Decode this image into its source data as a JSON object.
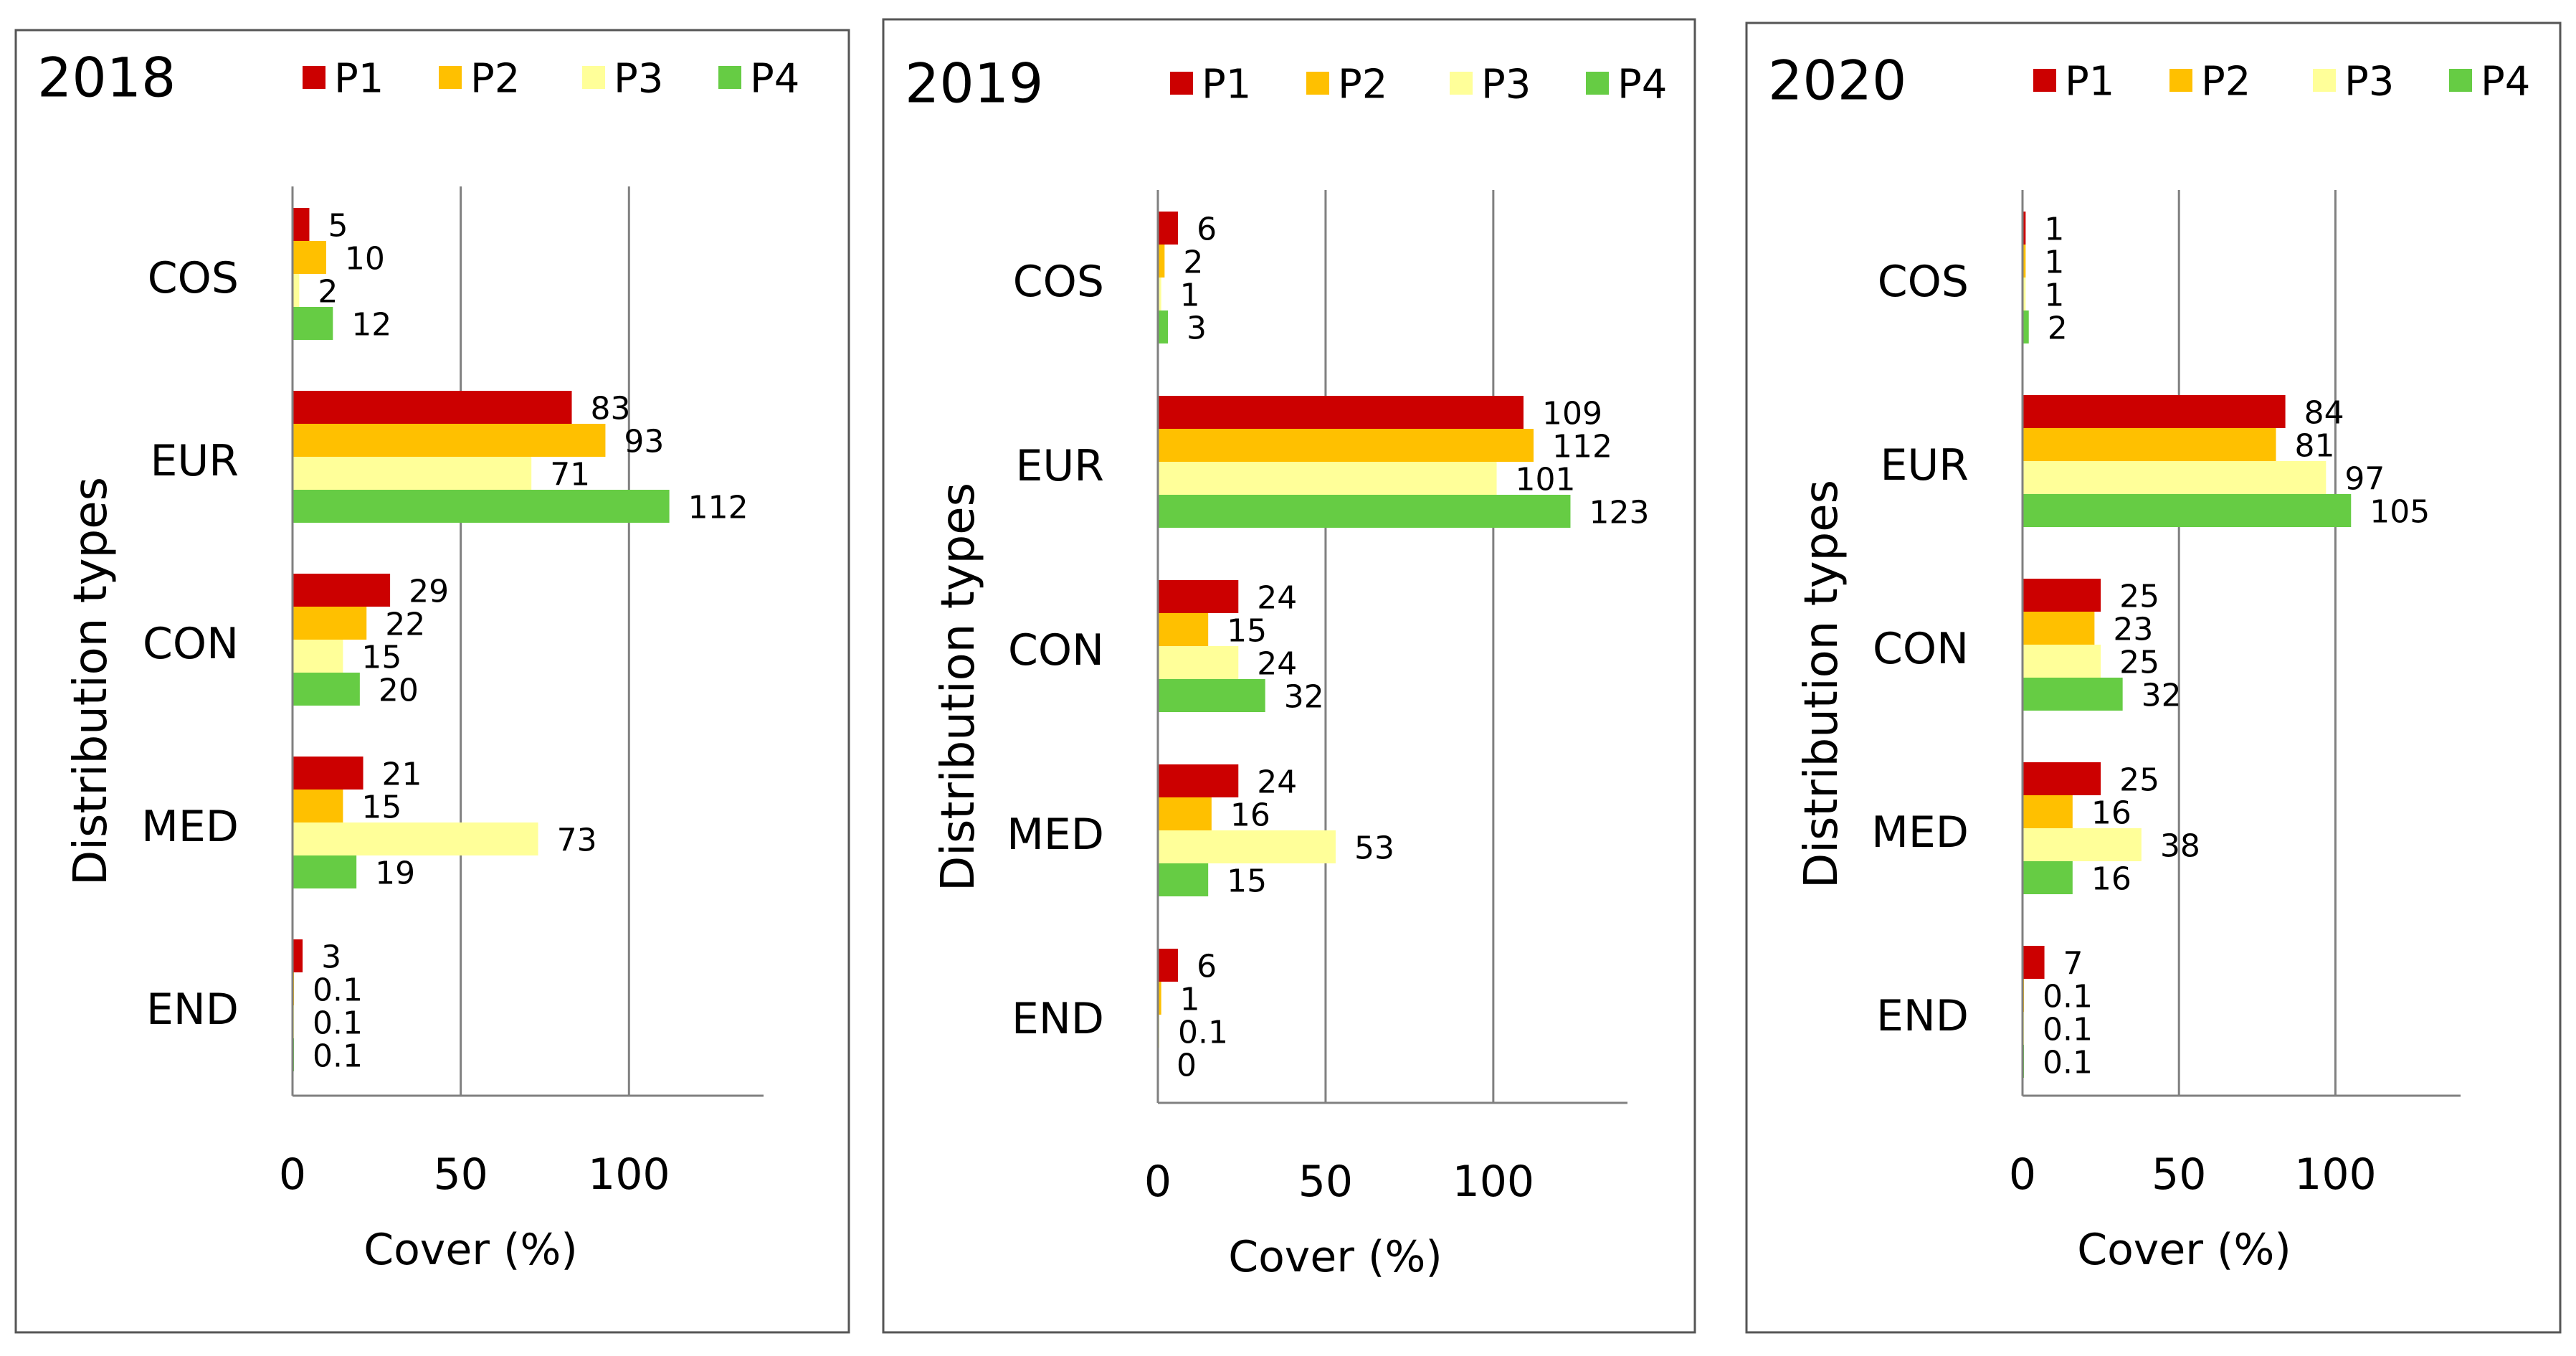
{
  "chart_data": [
    {
      "type": "bar",
      "orientation": "horizontal",
      "title": "2018",
      "xlabel": "Cover (%)",
      "ylabel": "Distribution types",
      "xlim": [
        0,
        140
      ],
      "xticks": [
        0,
        50,
        100
      ],
      "grid": true,
      "legend_position": "top",
      "categories": [
        "COS",
        "EUR",
        "CON",
        "MED",
        "END"
      ],
      "series": [
        {
          "name": "P1",
          "values": [
            5,
            83,
            29,
            21,
            3
          ],
          "labels": [
            "5",
            "83",
            "29",
            "21",
            "3"
          ]
        },
        {
          "name": "P2",
          "values": [
            10,
            93,
            22,
            15,
            0.1
          ],
          "labels": [
            "10",
            "93",
            "22",
            "15",
            "0.1"
          ]
        },
        {
          "name": "P3",
          "values": [
            2,
            71,
            15,
            73,
            0.1
          ],
          "labels": [
            "2",
            "71",
            "15",
            "73",
            "0.1"
          ]
        },
        {
          "name": "P4",
          "values": [
            12,
            112,
            20,
            19,
            0.1
          ],
          "labels": [
            "12",
            "112",
            "20",
            "19",
            "0.1"
          ]
        }
      ]
    },
    {
      "type": "bar",
      "orientation": "horizontal",
      "title": "2019",
      "xlabel": "Cover (%)",
      "ylabel": "Distribution types",
      "xlim": [
        0,
        140
      ],
      "xticks": [
        0,
        50,
        100
      ],
      "grid": true,
      "legend_position": "top",
      "categories": [
        "COS",
        "EUR",
        "CON",
        "MED",
        "END"
      ],
      "series": [
        {
          "name": "P1",
          "values": [
            6,
            109,
            24,
            24,
            6
          ],
          "labels": [
            "6",
            "109",
            "24",
            "24",
            "6"
          ]
        },
        {
          "name": "P2",
          "values": [
            2,
            112,
            15,
            16,
            1
          ],
          "labels": [
            "2",
            "112",
            "15",
            "16",
            "1"
          ]
        },
        {
          "name": "P3",
          "values": [
            1,
            101,
            24,
            53,
            0.1
          ],
          "labels": [
            "1",
            "101",
            "24",
            "53",
            "0.1"
          ]
        },
        {
          "name": "P4",
          "values": [
            3,
            123,
            32,
            15,
            0
          ],
          "labels": [
            "3",
            "123",
            "32",
            "15",
            "0"
          ]
        }
      ]
    },
    {
      "type": "bar",
      "orientation": "horizontal",
      "title": "2020",
      "xlabel": "Cover (%)",
      "ylabel": "Distribution types",
      "xlim": [
        0,
        140
      ],
      "xticks": [
        0,
        50,
        100
      ],
      "grid": true,
      "legend_position": "top",
      "categories": [
        "COS",
        "EUR",
        "CON",
        "MED",
        "END"
      ],
      "series": [
        {
          "name": "P1",
          "values": [
            1,
            84,
            25,
            25,
            7
          ],
          "labels": [
            "1",
            "84",
            "25",
            "25",
            "7"
          ]
        },
        {
          "name": "P2",
          "values": [
            1,
            81,
            23,
            16,
            0.1
          ],
          "labels": [
            "1",
            "81",
            "23",
            "16",
            "0.1"
          ]
        },
        {
          "name": "P3",
          "values": [
            1,
            97,
            25,
            38,
            0.1
          ],
          "labels": [
            "1",
            "97",
            "25",
            "38",
            "0.1"
          ]
        },
        {
          "name": "P4",
          "values": [
            2,
            105,
            32,
            16,
            0.1
          ],
          "labels": [
            "2",
            "105",
            "32",
            "16",
            "0.1"
          ]
        }
      ]
    }
  ],
  "colors": {
    "P1": "#cc0000",
    "P2": "#ffc000",
    "P3": "#ffff99",
    "P4": "#66cc44",
    "axis": "#808080",
    "grid": "#808080",
    "frame": "#555555"
  }
}
